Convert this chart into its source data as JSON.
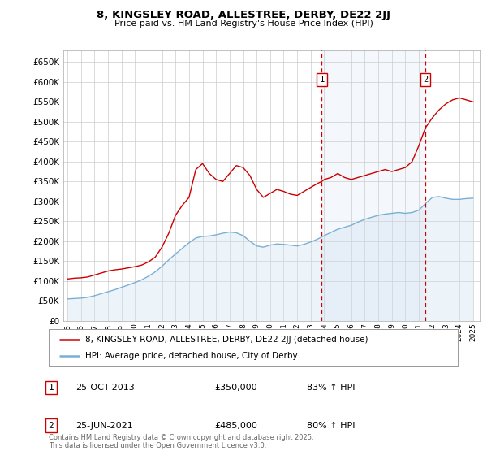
{
  "title": "8, KINGSLEY ROAD, ALLESTREE, DERBY, DE22 2JJ",
  "subtitle": "Price paid vs. HM Land Registry's House Price Index (HPI)",
  "legend_line1": "8, KINGSLEY ROAD, ALLESTREE, DERBY, DE22 2JJ (detached house)",
  "legend_line2": "HPI: Average price, detached house, City of Derby",
  "annotation1_date": "25-OCT-2013",
  "annotation1_price": "£350,000",
  "annotation1_hpi": "83% ↑ HPI",
  "annotation1_year": 2013.82,
  "annotation2_date": "25-JUN-2021",
  "annotation2_price": "£485,000",
  "annotation2_hpi": "80% ↑ HPI",
  "annotation2_year": 2021.49,
  "footer": "Contains HM Land Registry data © Crown copyright and database right 2025.\nThis data is licensed under the Open Government Licence v3.0.",
  "ylim": [
    0,
    680000
  ],
  "yticks": [
    0,
    50000,
    100000,
    150000,
    200000,
    250000,
    300000,
    350000,
    400000,
    450000,
    500000,
    550000,
    600000,
    650000
  ],
  "xlim": [
    1994.7,
    2025.5
  ],
  "background_color": "#ffffff",
  "grid_color": "#cccccc",
  "red_line_color": "#cc0000",
  "blue_line_color": "#7aafd4",
  "shade_color": "#cce0f0",
  "vline_color": "#cc0000",
  "red_data_x": [
    1995.0,
    1995.5,
    1996.0,
    1996.5,
    1997.0,
    1997.5,
    1998.0,
    1998.5,
    1999.0,
    1999.5,
    2000.0,
    2000.5,
    2001.0,
    2001.5,
    2002.0,
    2002.5,
    2003.0,
    2003.5,
    2004.0,
    2004.5,
    2005.0,
    2005.5,
    2006.0,
    2006.5,
    2007.0,
    2007.5,
    2008.0,
    2008.5,
    2009.0,
    2009.5,
    2010.0,
    2010.5,
    2011.0,
    2011.5,
    2012.0,
    2012.5,
    2013.0,
    2013.5,
    2013.82,
    2014.0,
    2014.5,
    2015.0,
    2015.5,
    2016.0,
    2016.5,
    2017.0,
    2017.5,
    2018.0,
    2018.5,
    2019.0,
    2019.5,
    2020.0,
    2020.5,
    2021.0,
    2021.49,
    2022.0,
    2022.5,
    2023.0,
    2023.5,
    2024.0,
    2024.5,
    2025.0
  ],
  "red_data_y": [
    105000,
    107000,
    108000,
    110000,
    115000,
    120000,
    125000,
    128000,
    130000,
    133000,
    136000,
    140000,
    148000,
    160000,
    185000,
    220000,
    265000,
    290000,
    310000,
    380000,
    395000,
    370000,
    355000,
    350000,
    370000,
    390000,
    385000,
    365000,
    330000,
    310000,
    320000,
    330000,
    325000,
    318000,
    315000,
    325000,
    335000,
    345000,
    350000,
    355000,
    360000,
    370000,
    360000,
    355000,
    360000,
    365000,
    370000,
    375000,
    380000,
    375000,
    380000,
    385000,
    400000,
    440000,
    485000,
    510000,
    530000,
    545000,
    555000,
    560000,
    555000,
    550000
  ],
  "blue_data_x": [
    1995.0,
    1995.5,
    1996.0,
    1996.5,
    1997.0,
    1997.5,
    1998.0,
    1998.5,
    1999.0,
    1999.5,
    2000.0,
    2000.5,
    2001.0,
    2001.5,
    2002.0,
    2002.5,
    2003.0,
    2003.5,
    2004.0,
    2004.5,
    2005.0,
    2005.5,
    2006.0,
    2006.5,
    2007.0,
    2007.5,
    2008.0,
    2008.5,
    2009.0,
    2009.5,
    2010.0,
    2010.5,
    2011.0,
    2011.5,
    2012.0,
    2012.5,
    2013.0,
    2013.5,
    2014.0,
    2014.5,
    2015.0,
    2015.5,
    2016.0,
    2016.5,
    2017.0,
    2017.5,
    2018.0,
    2018.5,
    2019.0,
    2019.5,
    2020.0,
    2020.5,
    2021.0,
    2021.5,
    2022.0,
    2022.5,
    2023.0,
    2023.5,
    2024.0,
    2024.5,
    2025.0
  ],
  "blue_data_y": [
    55000,
    56000,
    57000,
    59000,
    63000,
    68000,
    73000,
    78000,
    84000,
    90000,
    96000,
    103000,
    112000,
    123000,
    137000,
    153000,
    168000,
    182000,
    196000,
    208000,
    212000,
    213000,
    216000,
    220000,
    223000,
    221000,
    214000,
    200000,
    188000,
    185000,
    190000,
    193000,
    192000,
    190000,
    188000,
    192000,
    198000,
    205000,
    214000,
    222000,
    230000,
    235000,
    240000,
    248000,
    255000,
    260000,
    265000,
    268000,
    270000,
    272000,
    270000,
    272000,
    278000,
    295000,
    310000,
    312000,
    308000,
    305000,
    305000,
    307000,
    308000
  ]
}
